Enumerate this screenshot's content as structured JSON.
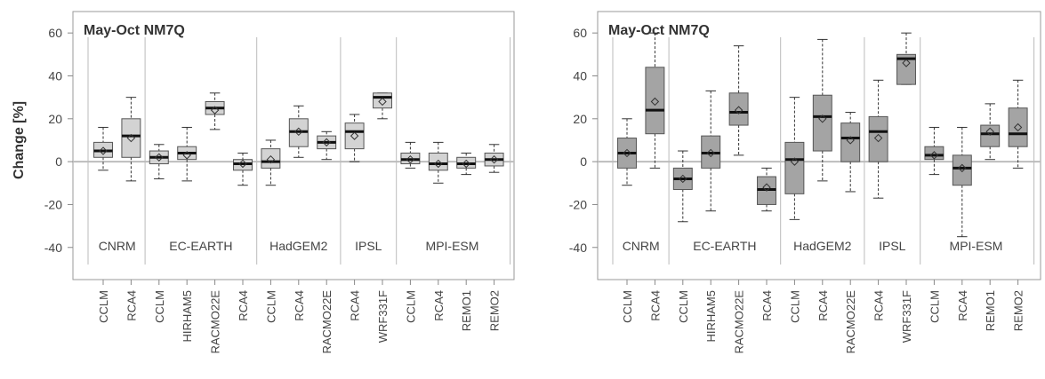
{
  "colors": {
    "axis": "#888888",
    "frame": "#9a9a9a",
    "separator": "#bbbbbb",
    "zero_line": "#bdbdbd",
    "text": "#444444",
    "title": "#333333",
    "box_left": "#d3d3d3",
    "box_right": "#a4a4a4",
    "median": "#111111",
    "whisker": "#333333"
  },
  "chart_data": [
    {
      "type": "box",
      "title": "May-Oct NM7Q",
      "xlabel": "",
      "ylabel": "Change [%]",
      "ylim": [
        -55,
        70
      ],
      "yticks": [
        -40,
        -20,
        0,
        20,
        40,
        60
      ],
      "zero_line": true,
      "grid": false,
      "box_fill": "box_left",
      "gcm_groups": [
        {
          "name": "CNRM",
          "start": 0,
          "end": 1
        },
        {
          "name": "EC-EARTH",
          "start": 2,
          "end": 5
        },
        {
          "name": "HadGEM2",
          "start": 6,
          "end": 8
        },
        {
          "name": "IPSL",
          "start": 9,
          "end": 10
        },
        {
          "name": "MPI-ESM",
          "start": 11,
          "end": 14
        }
      ],
      "categories": [
        "CCLM",
        "RCA4",
        "CCLM",
        "HIRHAM5",
        "RACMO22E",
        "RCA4",
        "CCLM",
        "RCA4",
        "RACMO22E",
        "RCA4",
        "WRF331F",
        "CCLM",
        "RCA4",
        "REMO1",
        "REMO2"
      ],
      "boxes": [
        {
          "min": -4,
          "q1": 2,
          "median": 5,
          "q3": 9,
          "max": 16,
          "mean": 5
        },
        {
          "min": -9,
          "q1": 2,
          "median": 12,
          "q3": 20,
          "max": 30,
          "mean": 11
        },
        {
          "min": -8,
          "q1": -1,
          "median": 2,
          "q3": 5,
          "max": 8,
          "mean": 2
        },
        {
          "min": -9,
          "q1": 1,
          "median": 4,
          "q3": 7,
          "max": 16,
          "mean": 3
        },
        {
          "min": 15,
          "q1": 22,
          "median": 25,
          "q3": 28,
          "max": 32,
          "mean": 24
        },
        {
          "min": -11,
          "q1": -4,
          "median": -1,
          "q3": 1,
          "max": 4,
          "mean": -1
        },
        {
          "min": -11,
          "q1": -3,
          "median": 0,
          "q3": 6,
          "max": 10,
          "mean": 1
        },
        {
          "min": 2,
          "q1": 7,
          "median": 14,
          "q3": 20,
          "max": 26,
          "mean": 14
        },
        {
          "min": 1,
          "q1": 6,
          "median": 9,
          "q3": 12,
          "max": 14,
          "mean": 9
        },
        {
          "min": 0,
          "q1": 6,
          "median": 14,
          "q3": 18,
          "max": 22,
          "mean": 12
        },
        {
          "min": 20,
          "q1": 25,
          "median": 30,
          "q3": 32,
          "max": 32,
          "mean": 28
        },
        {
          "min": -3,
          "q1": -1,
          "median": 1,
          "q3": 4,
          "max": 9,
          "mean": 1
        },
        {
          "min": -10,
          "q1": -4,
          "median": -1,
          "q3": 4,
          "max": 9,
          "mean": -1
        },
        {
          "min": -6,
          "q1": -3,
          "median": -1,
          "q3": 2,
          "max": 4,
          "mean": -1
        },
        {
          "min": -5,
          "q1": -2,
          "median": 1,
          "q3": 4,
          "max": 8,
          "mean": 1
        }
      ]
    },
    {
      "type": "box",
      "title": "May-Oct NM7Q",
      "xlabel": "",
      "ylabel": "",
      "ylim": [
        -55,
        70
      ],
      "yticks": [
        -40,
        -20,
        0,
        20,
        40,
        60
      ],
      "zero_line": true,
      "grid": false,
      "box_fill": "box_right",
      "gcm_groups": [
        {
          "name": "CNRM",
          "start": 0,
          "end": 1
        },
        {
          "name": "EC-EARTH",
          "start": 2,
          "end": 5
        },
        {
          "name": "HadGEM2",
          "start": 6,
          "end": 8
        },
        {
          "name": "IPSL",
          "start": 9,
          "end": 10
        },
        {
          "name": "MPI-ESM",
          "start": 11,
          "end": 14
        }
      ],
      "categories": [
        "CCLM",
        "RCA4",
        "CCLM",
        "HIRHAM5",
        "RACMO22E",
        "RCA4",
        "CCLM",
        "RCA4",
        "RACMO22E",
        "RCA4",
        "WRF331F",
        "CCLM",
        "RCA4",
        "REMO1",
        "REMO2"
      ],
      "boxes": [
        {
          "min": -11,
          "q1": -3,
          "median": 4,
          "q3": 11,
          "max": 20,
          "mean": 4
        },
        {
          "min": -3,
          "q1": 13,
          "median": 24,
          "q3": 44,
          "max": 60,
          "mean": 28
        },
        {
          "min": -28,
          "q1": -13,
          "median": -8,
          "q3": -3,
          "max": 5,
          "mean": -8
        },
        {
          "min": -23,
          "q1": -3,
          "median": 4,
          "q3": 12,
          "max": 33,
          "mean": 4
        },
        {
          "min": 3,
          "q1": 17,
          "median": 23,
          "q3": 32,
          "max": 54,
          "mean": 24
        },
        {
          "min": -23,
          "q1": -20,
          "median": -13,
          "q3": -7,
          "max": -3,
          "mean": -12
        },
        {
          "min": -27,
          "q1": -15,
          "median": 1,
          "q3": 9,
          "max": 30,
          "mean": 0
        },
        {
          "min": -9,
          "q1": 5,
          "median": 21,
          "q3": 31,
          "max": 57,
          "mean": 20
        },
        {
          "min": -14,
          "q1": 0,
          "median": 11,
          "q3": 18,
          "max": 23,
          "mean": 10
        },
        {
          "min": -17,
          "q1": 0,
          "median": 14,
          "q3": 21,
          "max": 38,
          "mean": 11
        },
        {
          "min": 36,
          "q1": 36,
          "median": 48,
          "q3": 50,
          "max": 60,
          "mean": 46
        },
        {
          "min": -6,
          "q1": 1,
          "median": 3,
          "q3": 7,
          "max": 16,
          "mean": 3
        },
        {
          "min": -35,
          "q1": -11,
          "median": -3,
          "q3": 3,
          "max": 16,
          "mean": -3
        },
        {
          "min": 1,
          "q1": 7,
          "median": 13,
          "q3": 17,
          "max": 27,
          "mean": 14
        },
        {
          "min": -3,
          "q1": 7,
          "median": 13,
          "q3": 25,
          "max": 38,
          "mean": 16
        }
      ]
    }
  ]
}
